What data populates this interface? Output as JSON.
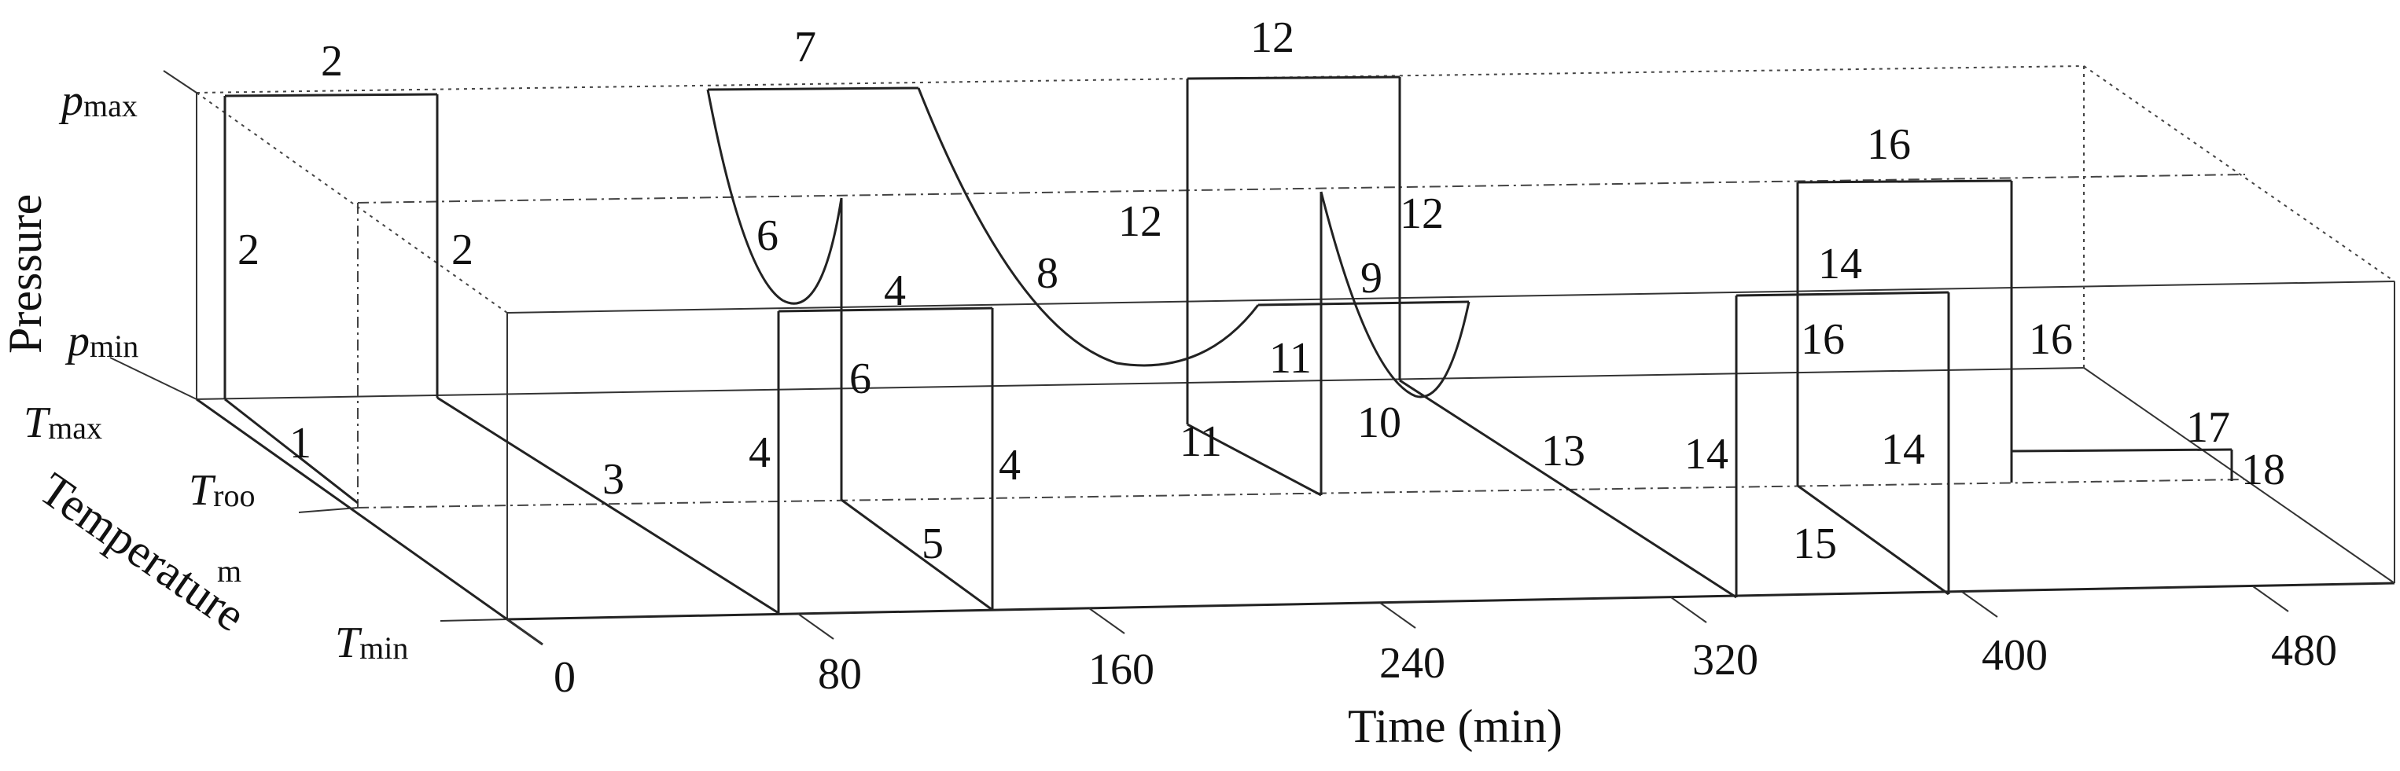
{
  "diagram": {
    "axes": {
      "time_title": "Time (min)",
      "pressure_title": "Pressure",
      "temperature_title": "Temperature",
      "time_ticks": [
        "0",
        "80",
        "160",
        "240",
        "320",
        "400",
        "480"
      ],
      "p_max": {
        "sym": "p",
        "sub": "max"
      },
      "p_min": {
        "sym": "p",
        "sub": "min"
      },
      "t_max": {
        "sym": "T",
        "sub": "max"
      },
      "t_room": {
        "sym": "T",
        "sub": "roo",
        "sub2": "m"
      },
      "t_min": {
        "sym": "T",
        "sub": "min"
      }
    },
    "segment_labels": [
      "2",
      "2",
      "2",
      "1",
      "3",
      "7",
      "6",
      "6",
      "4",
      "4",
      "4",
      "5",
      "8",
      "12",
      "12",
      "12",
      "11",
      "11",
      "9",
      "10",
      "13",
      "14",
      "14",
      "14",
      "15",
      "16",
      "16",
      "16",
      "17",
      "18"
    ]
  }
}
